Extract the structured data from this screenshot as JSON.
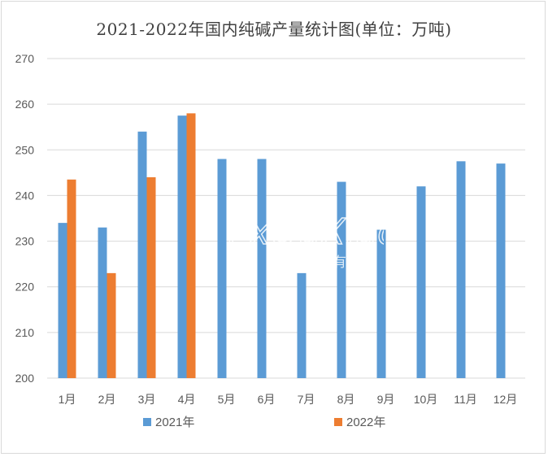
{
  "chart_data": {
    "type": "bar",
    "title": "2021-2022年国内纯碱产量统计图(单位：万吨)",
    "categories": [
      "1月",
      "2月",
      "3月",
      "4月",
      "5月",
      "6月",
      "7月",
      "8月",
      "9月",
      "10月",
      "11月",
      "12月"
    ],
    "series": [
      {
        "name": "2021年",
        "color": "#5b9bd5",
        "values": [
          234,
          233,
          254,
          257.5,
          248,
          248,
          223,
          243,
          232.5,
          242,
          247.5,
          247
        ]
      },
      {
        "name": "2022年",
        "color": "#ed7d31",
        "values": [
          243.5,
          223,
          244,
          258,
          null,
          null,
          null,
          null,
          null,
          null,
          null,
          null
        ]
      }
    ],
    "ylim": [
      200,
      270
    ],
    "yticks": [
      200,
      210,
      220,
      230,
      240,
      250,
      260,
      270
    ],
    "grid": true,
    "legend_position": "bottom"
  },
  "watermark": {
    "text": "i xOuXiao",
    "subtext": "小有料"
  }
}
